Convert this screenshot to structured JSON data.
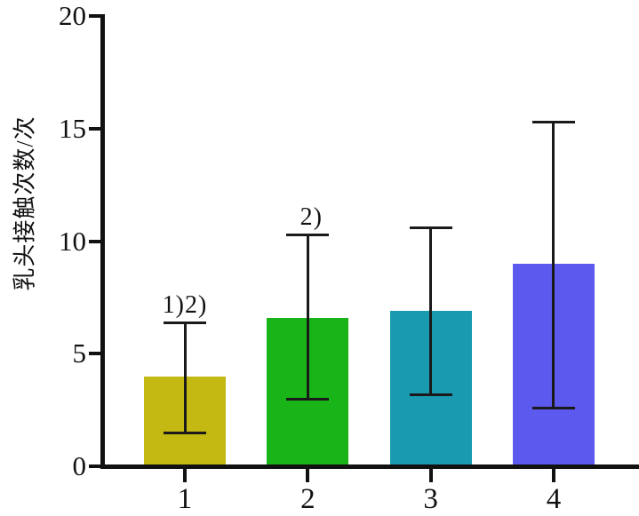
{
  "chart_data": {
    "type": "bar",
    "title": "",
    "xlabel": "",
    "ylabel": "乳头接触次数/次",
    "categories": [
      "1",
      "2",
      "3",
      "4"
    ],
    "values": [
      4.0,
      6.6,
      6.9,
      9.0
    ],
    "error_high": [
      6.4,
      10.3,
      10.6,
      15.3
    ],
    "error_low": [
      1.5,
      3.0,
      3.2,
      2.6
    ],
    "bar_colors": [
      "#c4b813",
      "#18b418",
      "#1a9ab0",
      "#5c59ee"
    ],
    "annotations": [
      {
        "category_index": 0,
        "text": "1)2)"
      },
      {
        "category_index": 1,
        "text": "2)"
      }
    ],
    "yticks": [
      0,
      5,
      10,
      15,
      20
    ],
    "ylim": [
      0,
      20
    ],
    "grid": false,
    "legend": null,
    "axis_color": "#111111",
    "error_bar_color": "#1a1a1a"
  }
}
